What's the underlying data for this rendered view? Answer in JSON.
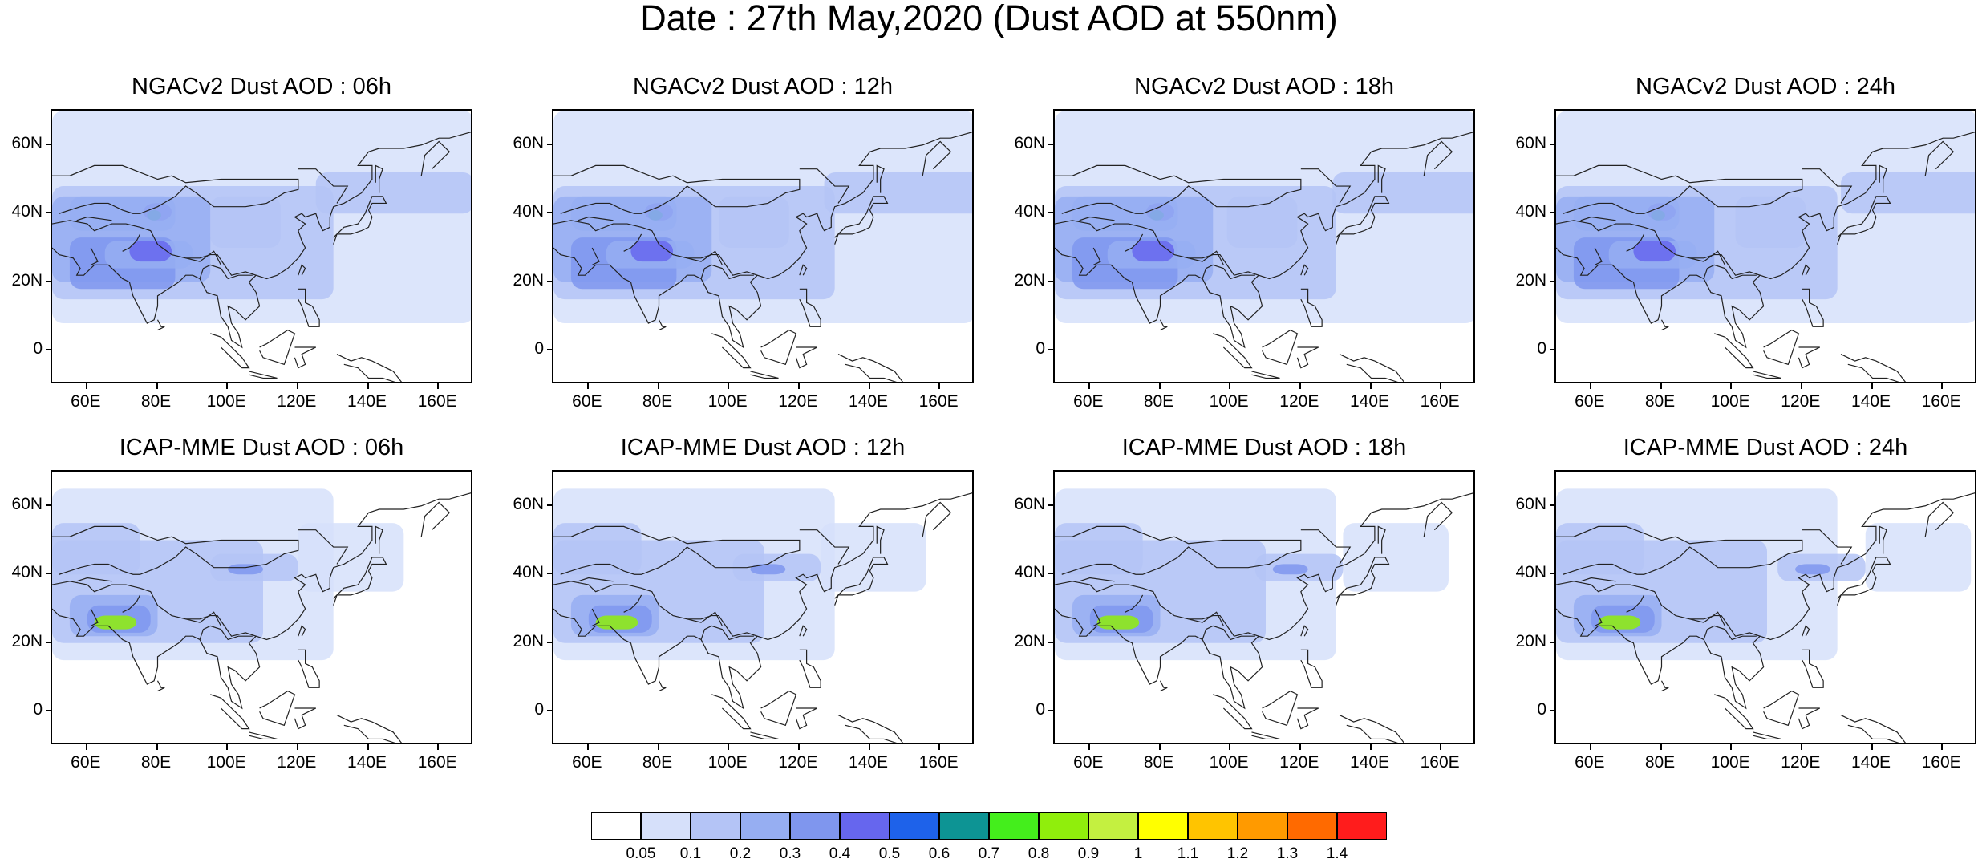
{
  "title": "Date : 27th May,2020 (Dust AOD at 550nm)",
  "panels": [
    {
      "title": "NGACv2 Dust AOD : 06h"
    },
    {
      "title": "NGACv2 Dust AOD : 12h"
    },
    {
      "title": "NGACv2 Dust AOD : 18h"
    },
    {
      "title": "NGACv2 Dust AOD : 24h"
    },
    {
      "title": "ICAP-MME Dust AOD : 06h"
    },
    {
      "title": "ICAP-MME Dust AOD : 12h"
    },
    {
      "title": "ICAP-MME Dust AOD : 18h"
    },
    {
      "title": "ICAP-MME Dust AOD : 24h"
    }
  ],
  "axes": {
    "lat_labels": [
      "60N",
      "40N",
      "20N",
      "0"
    ],
    "lon_labels": [
      "60E",
      "80E",
      "100E",
      "120E",
      "140E",
      "160E"
    ]
  },
  "colorbar": {
    "labels": [
      "0.05",
      "0.1",
      "0.2",
      "0.3",
      "0.4",
      "0.5",
      "0.6",
      "0.7",
      "0.8",
      "0.9",
      "1",
      "1.1",
      "1.2",
      "1.3",
      "1.4"
    ],
    "colors": [
      "#ffffff",
      "#d6e0fa",
      "#b4c4f6",
      "#96aef2",
      "#7f96ee",
      "#6666ee",
      "#1e62ea",
      "#0d9494",
      "#44ee1c",
      "#90ee0c",
      "#c4f040",
      "#ffff00",
      "#ffc400",
      "#ff9a00",
      "#ff6a00",
      "#ff1c1c"
    ]
  }
}
